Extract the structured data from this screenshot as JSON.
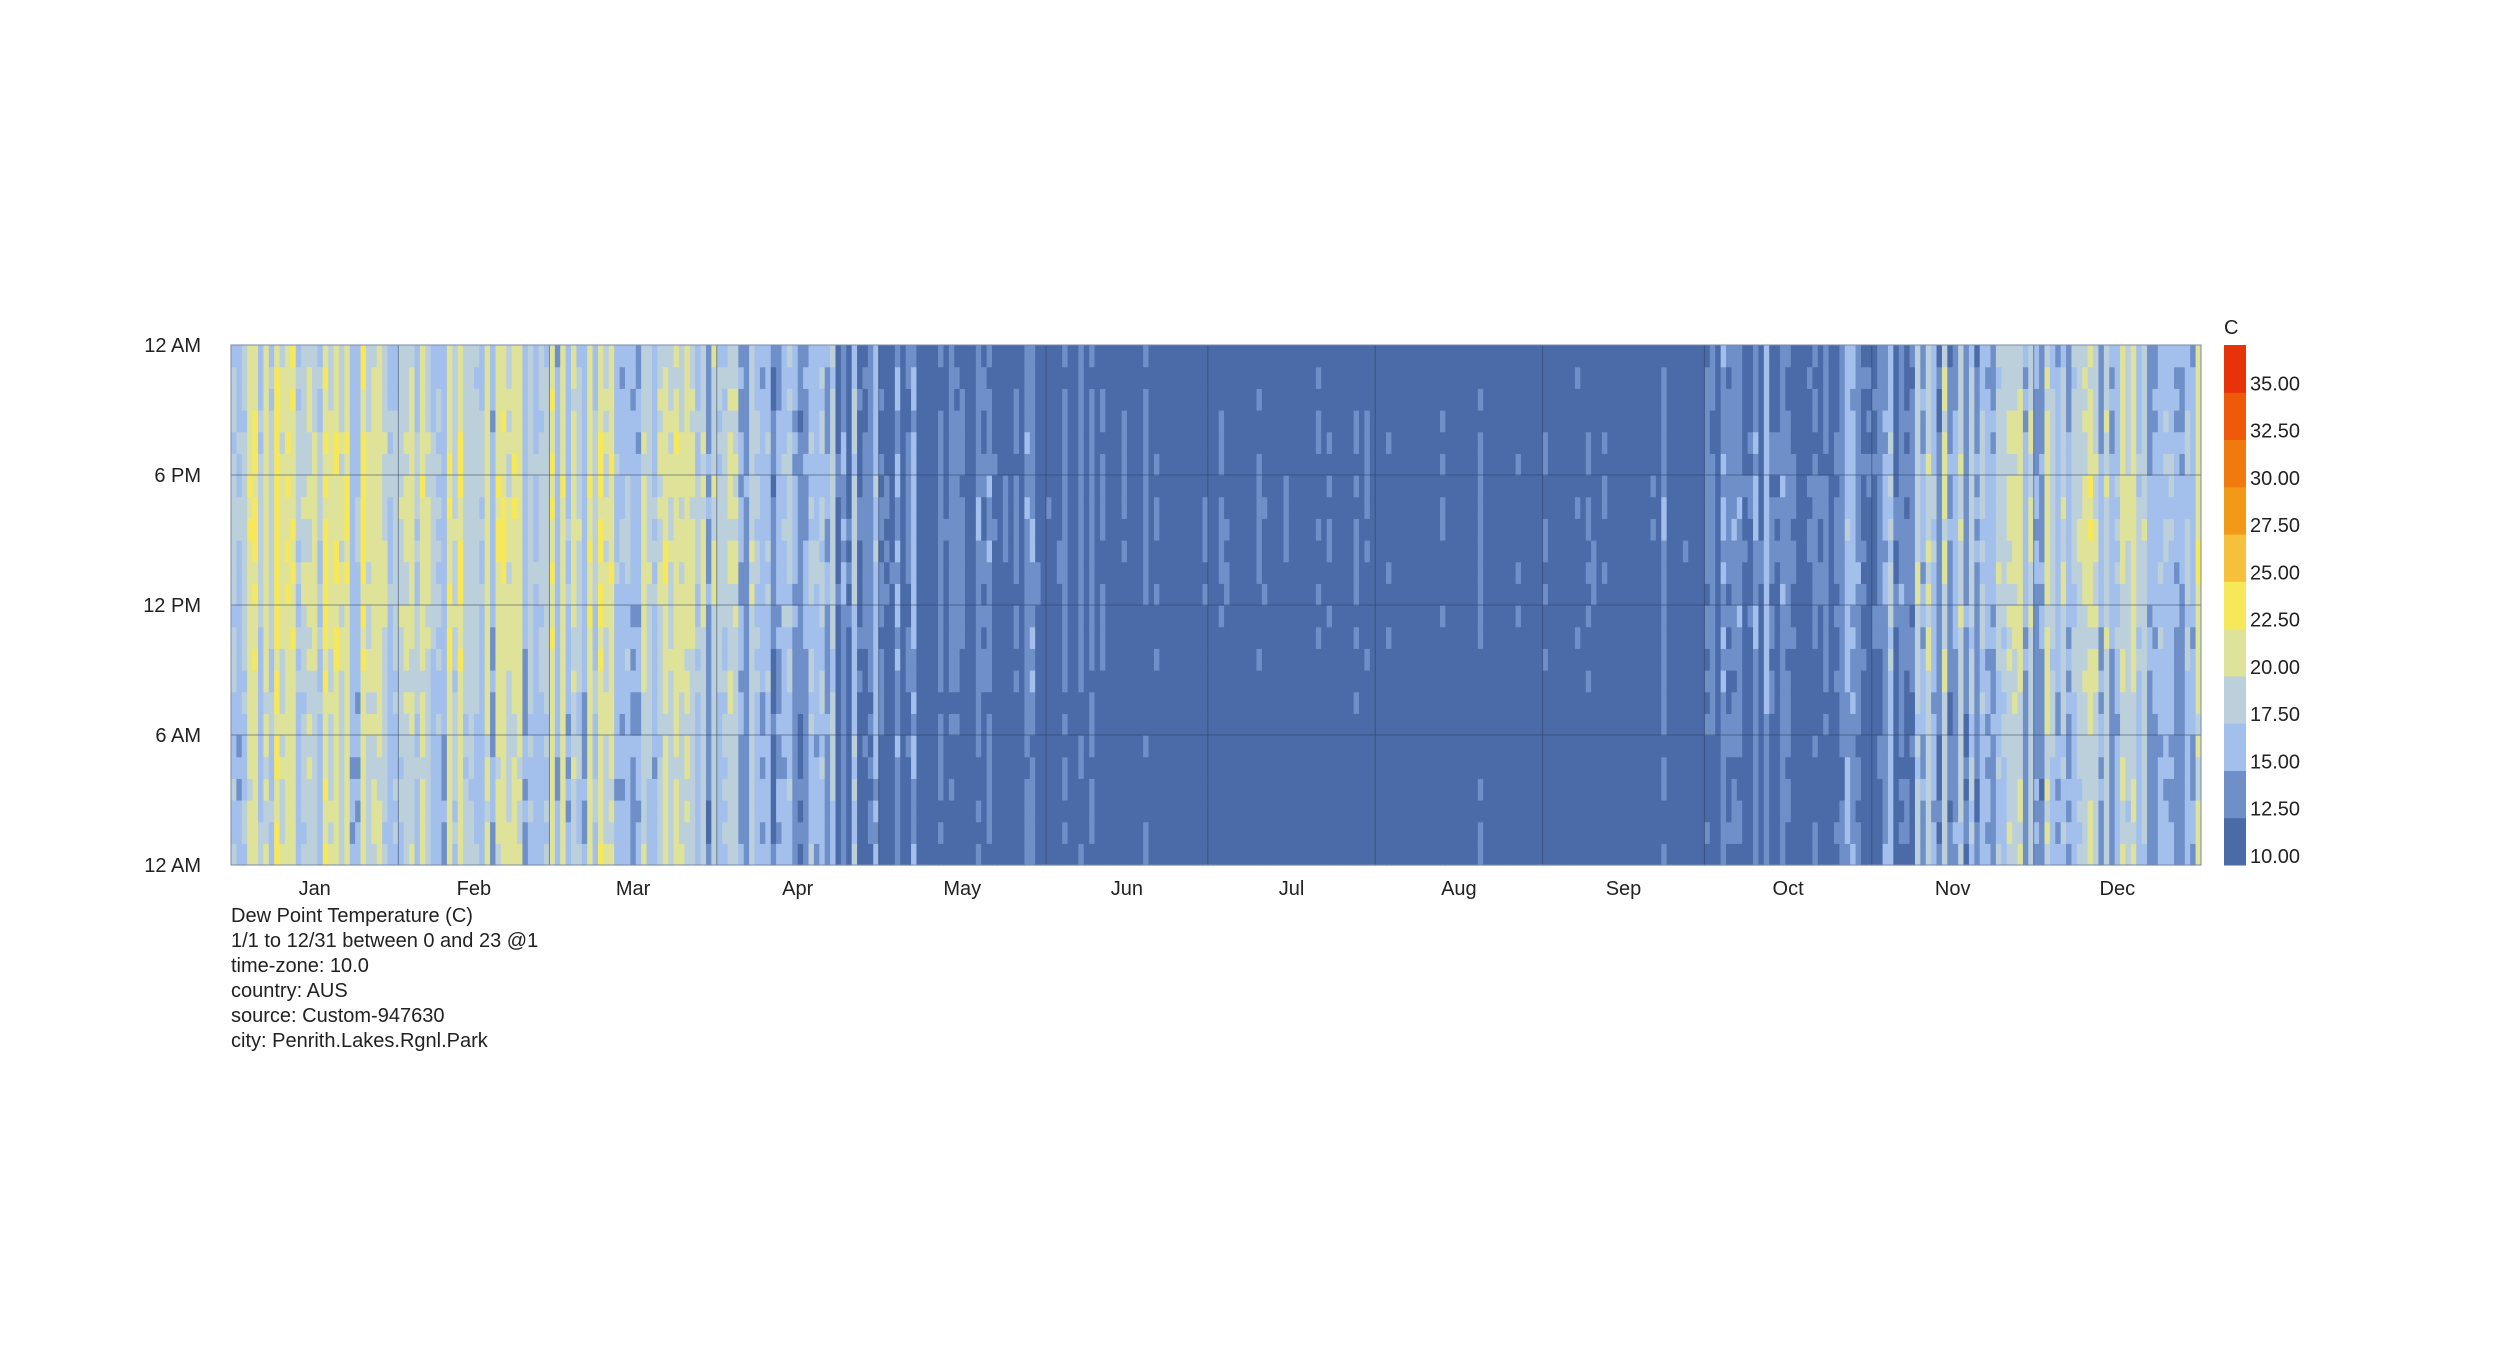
{
  "chart_data": {
    "type": "heatmap",
    "x": {
      "start": "1/1",
      "end": "12/31",
      "tick_labels": [
        "Jan",
        "Feb",
        "Mar",
        "Apr",
        "May",
        "Jun",
        "Jul",
        "Aug",
        "Sep",
        "Oct",
        "Nov",
        "Dec"
      ]
    },
    "y": {
      "from_hour": 0,
      "to_hour": 23,
      "step": 1,
      "tick_labels": [
        "12 AM",
        "6 PM",
        "12 PM",
        "6 AM",
        "12 AM"
      ]
    },
    "legend": {
      "title": "C",
      "position": "right",
      "tick_labels": [
        "35.00",
        "32.50",
        "30.00",
        "27.50",
        "25.00",
        "22.50",
        "20.00",
        "17.50",
        "15.00",
        "12.50",
        "10.00"
      ],
      "bins": [
        {
          "min": 10.0,
          "max": 12.5,
          "color": "#4a6aa8"
        },
        {
          "min": 12.5,
          "max": 15.0,
          "color": "#6f8fc8"
        },
        {
          "min": 15.0,
          "max": 17.5,
          "color": "#a3bfec"
        },
        {
          "min": 17.5,
          "max": 20.0,
          "color": "#bcd0dc"
        },
        {
          "min": 20.0,
          "max": 22.5,
          "color": "#dfe39a"
        },
        {
          "min": 22.5,
          "max": 25.0,
          "color": "#f7e85a"
        },
        {
          "min": 25.0,
          "max": 27.5,
          "color": "#f7c03c"
        },
        {
          "min": 27.5,
          "max": 30.0,
          "color": "#f29a18"
        },
        {
          "min": 30.0,
          "max": 32.5,
          "color": "#f07a0e"
        },
        {
          "min": 32.5,
          "max": 35.0,
          "color": "#ee5a0a"
        },
        {
          "min": 35.0,
          "max": 37.5,
          "color": "#e8320a"
        }
      ]
    },
    "gridlines": true,
    "monthly_typical_dew_point_c": {
      "Jan": 19.5,
      "Feb": 19.0,
      "Mar": 18.5,
      "Apr": 15.5,
      "May": 11.5,
      "Jun": 10.0,
      "Jul": 9.5,
      "Aug": 9.0,
      "Sep": 9.5,
      "Oct": 12.5,
      "Nov": 16.5,
      "Dec": 18.0
    }
  },
  "info": {
    "title": "Dew Point Temperature (C)",
    "range": "1/1 to 12/31 between 0 and 23 @1",
    "timezone": "time-zone: 10.0",
    "country": "country: AUS",
    "source": "source: Custom-947630",
    "city": "city: Penrith.Lakes.Rgnl.Park"
  }
}
